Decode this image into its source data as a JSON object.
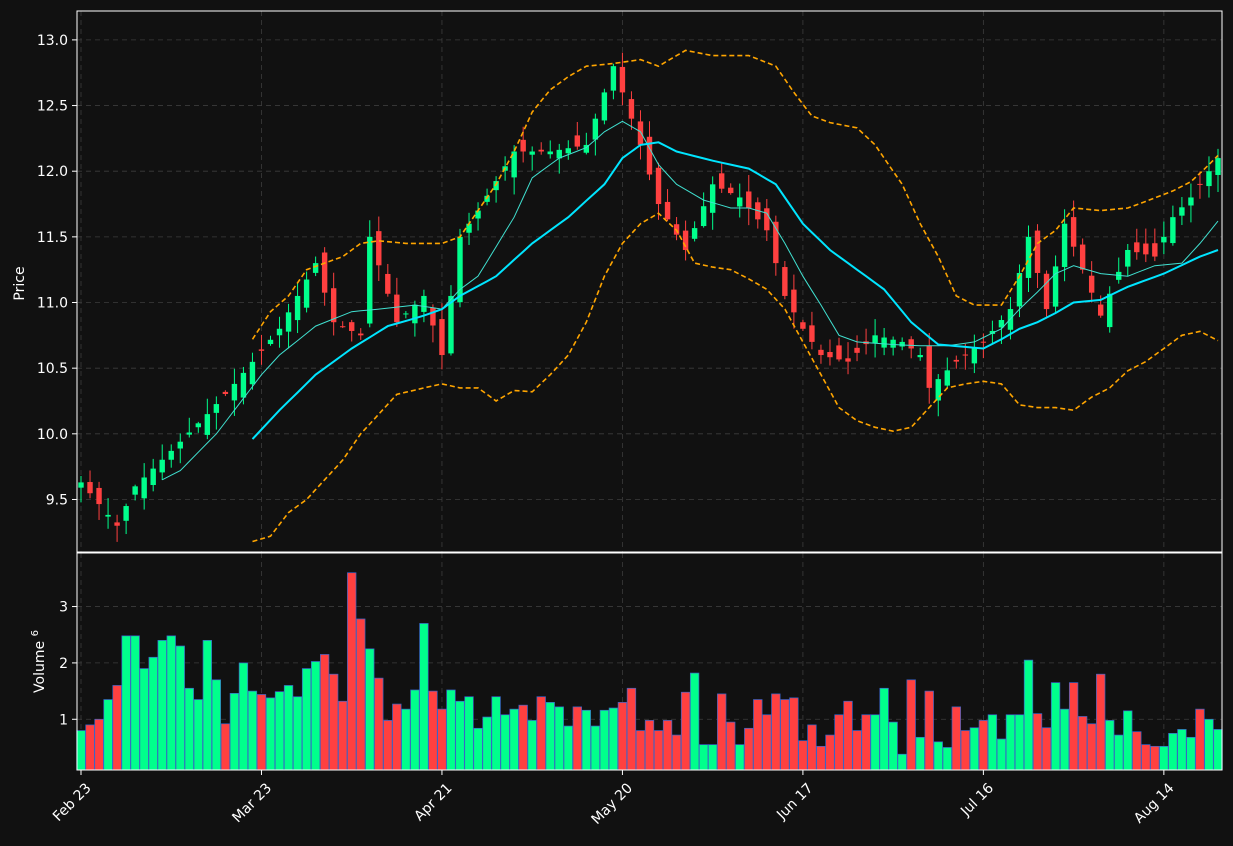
{
  "chart_data": {
    "type": "candlestick",
    "colors": {
      "background": "#111111",
      "up": "#00ff8c",
      "down": "#ff4040",
      "volume_edge": "#3a64c8",
      "ma_short": "#40e0d0",
      "ma_long": "#00e5ff",
      "bands": "#ffa500",
      "grid": "#3c3c3c",
      "frame": "#ffffff"
    },
    "price_panel": {
      "ylabel": "Price",
      "ylim": [
        9.1,
        13.22
      ],
      "yticks": [
        "9.5",
        "10.0",
        "10.5",
        "11.0",
        "11.5",
        "12.0",
        "12.5",
        "13.0"
      ],
      "grid": true
    },
    "volume_panel": {
      "ylabel": "Volume",
      "ylabel_exponent": "6",
      "ylim": [
        0.1,
        3.95
      ],
      "yticks": [
        "1",
        "2",
        "3"
      ],
      "grid": true
    },
    "x_axis": {
      "count": 127,
      "tick_labels": [
        {
          "i": 0,
          "label": "Feb 23"
        },
        {
          "i": 20,
          "label": "Mar 23"
        },
        {
          "i": 40,
          "label": "Apr 21"
        },
        {
          "i": 60,
          "label": "May 20"
        },
        {
          "i": 80,
          "label": "Jun 17"
        },
        {
          "i": 100,
          "label": "Jul 16"
        },
        {
          "i": 120,
          "label": "Aug 14"
        }
      ]
    },
    "close_anchors": [
      [
        0,
        9.63
      ],
      [
        4,
        9.3
      ],
      [
        6,
        9.6
      ],
      [
        10,
        9.87
      ],
      [
        14,
        10.15
      ],
      [
        17,
        10.38
      ],
      [
        22,
        10.8
      ],
      [
        26,
        11.3
      ],
      [
        28,
        10.85
      ],
      [
        31,
        10.75
      ],
      [
        32,
        11.5
      ],
      [
        35,
        10.85
      ],
      [
        38,
        11.05
      ],
      [
        40,
        10.6
      ],
      [
        42,
        11.5
      ],
      [
        44,
        11.7
      ],
      [
        48,
        12.15
      ],
      [
        52,
        12.15
      ],
      [
        56,
        12.2
      ],
      [
        59,
        12.8
      ],
      [
        62,
        12.2
      ],
      [
        64,
        11.75
      ],
      [
        67,
        11.4
      ],
      [
        70,
        11.9
      ],
      [
        73,
        11.8
      ],
      [
        76,
        11.55
      ],
      [
        78,
        11.05
      ],
      [
        80,
        10.8
      ],
      [
        82,
        10.6
      ],
      [
        85,
        10.55
      ],
      [
        88,
        10.75
      ],
      [
        91,
        10.7
      ],
      [
        93,
        10.6
      ],
      [
        94,
        10.35
      ],
      [
        97,
        10.55
      ],
      [
        100,
        10.7
      ],
      [
        103,
        10.95
      ],
      [
        105,
        11.5
      ],
      [
        107,
        10.95
      ],
      [
        109,
        11.6
      ],
      [
        111,
        11.25
      ],
      [
        113,
        10.9
      ],
      [
        116,
        11.4
      ],
      [
        119,
        11.35
      ],
      [
        121,
        11.65
      ],
      [
        123,
        11.8
      ],
      [
        126,
        12.1
      ]
    ],
    "ma_short": {
      "window": 10,
      "anchors": [
        [
          9,
          9.65
        ],
        [
          11,
          9.72
        ],
        [
          15,
          10.0
        ],
        [
          20,
          10.45
        ],
        [
          22,
          10.6
        ],
        [
          26,
          10.82
        ],
        [
          30,
          10.93
        ],
        [
          33,
          10.95
        ],
        [
          37,
          10.98
        ],
        [
          40,
          10.95
        ],
        [
          42,
          11.1
        ],
        [
          44,
          11.2
        ],
        [
          48,
          11.65
        ],
        [
          50,
          11.95
        ],
        [
          53,
          12.1
        ],
        [
          56,
          12.18
        ],
        [
          58,
          12.3
        ],
        [
          60,
          12.38
        ],
        [
          62,
          12.3
        ],
        [
          64,
          12.05
        ],
        [
          66,
          11.9
        ],
        [
          69,
          11.78
        ],
        [
          72,
          11.72
        ],
        [
          74,
          11.72
        ],
        [
          76,
          11.68
        ],
        [
          78,
          11.45
        ],
        [
          80,
          11.2
        ],
        [
          82,
          10.98
        ],
        [
          84,
          10.75
        ],
        [
          86,
          10.7
        ],
        [
          90,
          10.68
        ],
        [
          93,
          10.67
        ],
        [
          96,
          10.67
        ],
        [
          99,
          10.7
        ],
        [
          102,
          10.8
        ],
        [
          104,
          10.95
        ],
        [
          106,
          11.08
        ],
        [
          108,
          11.22
        ],
        [
          110,
          11.28
        ],
        [
          113,
          11.22
        ],
        [
          116,
          11.2
        ],
        [
          119,
          11.28
        ],
        [
          122,
          11.3
        ],
        [
          124,
          11.45
        ],
        [
          126,
          11.62
        ]
      ]
    },
    "ma_long": {
      "window": 20,
      "anchors": [
        [
          19,
          9.96
        ],
        [
          22,
          10.18
        ],
        [
          26,
          10.45
        ],
        [
          30,
          10.65
        ],
        [
          34,
          10.82
        ],
        [
          38,
          10.9
        ],
        [
          40,
          10.95
        ],
        [
          42,
          11.05
        ],
        [
          46,
          11.2
        ],
        [
          50,
          11.45
        ],
        [
          54,
          11.65
        ],
        [
          58,
          11.9
        ],
        [
          60,
          12.1
        ],
        [
          62,
          12.2
        ],
        [
          64,
          12.22
        ],
        [
          66,
          12.15
        ],
        [
          70,
          12.08
        ],
        [
          74,
          12.02
        ],
        [
          77,
          11.9
        ],
        [
          80,
          11.6
        ],
        [
          83,
          11.4
        ],
        [
          86,
          11.25
        ],
        [
          89,
          11.1
        ],
        [
          92,
          10.85
        ],
        [
          95,
          10.68
        ],
        [
          100,
          10.65
        ],
        [
          102,
          10.72
        ],
        [
          104,
          10.8
        ],
        [
          106,
          10.85
        ],
        [
          108,
          10.92
        ],
        [
          110,
          11.0
        ],
        [
          113,
          11.02
        ],
        [
          116,
          11.12
        ],
        [
          120,
          11.22
        ],
        [
          124,
          11.35
        ],
        [
          126,
          11.4
        ]
      ]
    },
    "bollinger_upper": {
      "anchors": [
        [
          19,
          10.72
        ],
        [
          21,
          10.93
        ],
        [
          23,
          11.05
        ],
        [
          25,
          11.25
        ],
        [
          27,
          11.3
        ],
        [
          29,
          11.35
        ],
        [
          31,
          11.45
        ],
        [
          33,
          11.47
        ],
        [
          36,
          11.45
        ],
        [
          40,
          11.45
        ],
        [
          42,
          11.5
        ],
        [
          44,
          11.7
        ],
        [
          46,
          11.9
        ],
        [
          48,
          12.15
        ],
        [
          50,
          12.45
        ],
        [
          52,
          12.62
        ],
        [
          54,
          12.72
        ],
        [
          56,
          12.8
        ],
        [
          59,
          12.82
        ],
        [
          62,
          12.85
        ],
        [
          64,
          12.8
        ],
        [
          67,
          12.92
        ],
        [
          70,
          12.88
        ],
        [
          74,
          12.88
        ],
        [
          77,
          12.8
        ],
        [
          79,
          12.6
        ],
        [
          81,
          12.42
        ],
        [
          83,
          12.37
        ],
        [
          86,
          12.33
        ],
        [
          88,
          12.2
        ],
        [
          91,
          11.9
        ],
        [
          93,
          11.6
        ],
        [
          95,
          11.35
        ],
        [
          97,
          11.05
        ],
        [
          99,
          10.98
        ],
        [
          102,
          10.98
        ],
        [
          104,
          11.2
        ],
        [
          106,
          11.45
        ],
        [
          108,
          11.55
        ],
        [
          110,
          11.72
        ],
        [
          113,
          11.7
        ],
        [
          116,
          11.72
        ],
        [
          118,
          11.77
        ],
        [
          121,
          11.85
        ],
        [
          123,
          11.92
        ],
        [
          125,
          12.05
        ],
        [
          126,
          12.12
        ]
      ]
    },
    "bollinger_lower": {
      "anchors": [
        [
          19,
          9.18
        ],
        [
          21,
          9.22
        ],
        [
          23,
          9.4
        ],
        [
          25,
          9.5
        ],
        [
          27,
          9.65
        ],
        [
          29,
          9.8
        ],
        [
          31,
          10.0
        ],
        [
          33,
          10.15
        ],
        [
          35,
          10.3
        ],
        [
          38,
          10.35
        ],
        [
          40,
          10.38
        ],
        [
          42,
          10.35
        ],
        [
          44,
          10.35
        ],
        [
          46,
          10.25
        ],
        [
          48,
          10.33
        ],
        [
          50,
          10.32
        ],
        [
          52,
          10.45
        ],
        [
          54,
          10.6
        ],
        [
          56,
          10.85
        ],
        [
          58,
          11.2
        ],
        [
          60,
          11.45
        ],
        [
          62,
          11.6
        ],
        [
          64,
          11.68
        ],
        [
          66,
          11.55
        ],
        [
          68,
          11.3
        ],
        [
          70,
          11.27
        ],
        [
          72,
          11.25
        ],
        [
          74,
          11.18
        ],
        [
          76,
          11.1
        ],
        [
          78,
          10.95
        ],
        [
          80,
          10.7
        ],
        [
          82,
          10.45
        ],
        [
          84,
          10.2
        ],
        [
          86,
          10.1
        ],
        [
          88,
          10.05
        ],
        [
          90,
          10.02
        ],
        [
          92,
          10.05
        ],
        [
          94,
          10.2
        ],
        [
          96,
          10.35
        ],
        [
          98,
          10.38
        ],
        [
          100,
          10.4
        ],
        [
          102,
          10.38
        ],
        [
          104,
          10.22
        ],
        [
          106,
          10.2
        ],
        [
          108,
          10.2
        ],
        [
          110,
          10.18
        ],
        [
          112,
          10.28
        ],
        [
          114,
          10.35
        ],
        [
          116,
          10.48
        ],
        [
          118,
          10.55
        ],
        [
          120,
          10.65
        ],
        [
          122,
          10.75
        ],
        [
          124,
          10.78
        ],
        [
          126,
          10.71
        ]
      ]
    },
    "volume_anchors": [
      [
        0,
        0.8
      ],
      [
        2,
        1.0
      ],
      [
        3,
        1.35
      ],
      [
        4,
        1.6
      ],
      [
        5,
        2.48
      ],
      [
        6,
        2.48
      ],
      [
        7,
        1.9
      ],
      [
        8,
        2.1
      ],
      [
        9,
        2.4
      ],
      [
        10,
        2.48
      ],
      [
        11,
        2.3
      ],
      [
        12,
        1.55
      ],
      [
        13,
        1.35
      ],
      [
        14,
        2.4
      ],
      [
        15,
        1.7
      ],
      [
        16,
        0.92
      ],
      [
        18,
        2.0
      ],
      [
        19,
        1.5
      ],
      [
        21,
        1.38
      ],
      [
        23,
        1.6
      ],
      [
        24,
        1.4
      ],
      [
        25,
        1.9
      ],
      [
        27,
        2.15
      ],
      [
        28,
        1.8
      ],
      [
        29,
        1.32
      ],
      [
        30,
        3.6
      ],
      [
        31,
        2.78
      ],
      [
        32,
        2.25
      ],
      [
        33,
        1.73
      ],
      [
        34,
        0.98
      ],
      [
        35,
        1.27
      ],
      [
        36,
        1.18
      ],
      [
        37,
        1.52
      ],
      [
        38,
        2.7
      ],
      [
        39,
        1.5
      ],
      [
        40,
        1.18
      ],
      [
        41,
        1.52
      ],
      [
        42,
        1.32
      ],
      [
        43,
        1.4
      ],
      [
        44,
        0.84
      ],
      [
        45,
        1.04
      ],
      [
        46,
        1.4
      ],
      [
        47,
        1.08
      ],
      [
        48,
        1.18
      ],
      [
        49,
        1.25
      ],
      [
        50,
        0.98
      ],
      [
        51,
        1.4
      ],
      [
        52,
        1.3
      ],
      [
        53,
        1.22
      ],
      [
        54,
        0.88
      ],
      [
        55,
        1.22
      ],
      [
        56,
        1.16
      ],
      [
        57,
        0.88
      ],
      [
        58,
        1.16
      ],
      [
        59,
        1.2
      ],
      [
        60,
        1.3
      ],
      [
        61,
        1.55
      ],
      [
        62,
        0.8
      ],
      [
        63,
        0.98
      ],
      [
        64,
        0.8
      ],
      [
        65,
        0.98
      ],
      [
        66,
        0.72
      ],
      [
        67,
        1.48
      ],
      [
        68,
        1.82
      ],
      [
        69,
        0.55
      ],
      [
        70,
        0.55
      ],
      [
        71,
        1.45
      ],
      [
        72,
        0.95
      ],
      [
        73,
        0.55
      ],
      [
        74,
        0.84
      ],
      [
        75,
        1.35
      ],
      [
        76,
        1.08
      ],
      [
        77,
        1.45
      ],
      [
        78,
        1.35
      ],
      [
        79,
        1.38
      ],
      [
        80,
        0.62
      ],
      [
        81,
        0.9
      ],
      [
        82,
        0.52
      ],
      [
        83,
        0.72
      ],
      [
        84,
        1.08
      ],
      [
        85,
        1.32
      ],
      [
        86,
        0.8
      ],
      [
        87,
        1.08
      ],
      [
        88,
        1.08
      ],
      [
        89,
        1.55
      ],
      [
        90,
        0.95
      ],
      [
        91,
        0.38
      ],
      [
        92,
        1.7
      ],
      [
        93,
        0.68
      ],
      [
        94,
        1.5
      ],
      [
        95,
        0.6
      ],
      [
        96,
        0.5
      ],
      [
        97,
        1.22
      ],
      [
        98,
        0.8
      ],
      [
        99,
        0.85
      ],
      [
        100,
        0.98
      ],
      [
        101,
        1.08
      ],
      [
        102,
        0.65
      ],
      [
        103,
        1.08
      ],
      [
        104,
        1.08
      ],
      [
        105,
        2.05
      ],
      [
        106,
        1.1
      ],
      [
        107,
        0.85
      ],
      [
        108,
        1.65
      ],
      [
        109,
        1.18
      ],
      [
        110,
        1.65
      ],
      [
        111,
        1.05
      ],
      [
        112,
        0.92
      ],
      [
        113,
        1.8
      ],
      [
        114,
        0.98
      ],
      [
        115,
        0.72
      ],
      [
        116,
        1.15
      ],
      [
        117,
        0.78
      ],
      [
        118,
        0.55
      ],
      [
        119,
        0.52
      ],
      [
        120,
        0.52
      ],
      [
        121,
        0.75
      ],
      [
        122,
        0.82
      ],
      [
        123,
        0.68
      ],
      [
        124,
        1.18
      ],
      [
        126,
        0.82
      ]
    ]
  }
}
